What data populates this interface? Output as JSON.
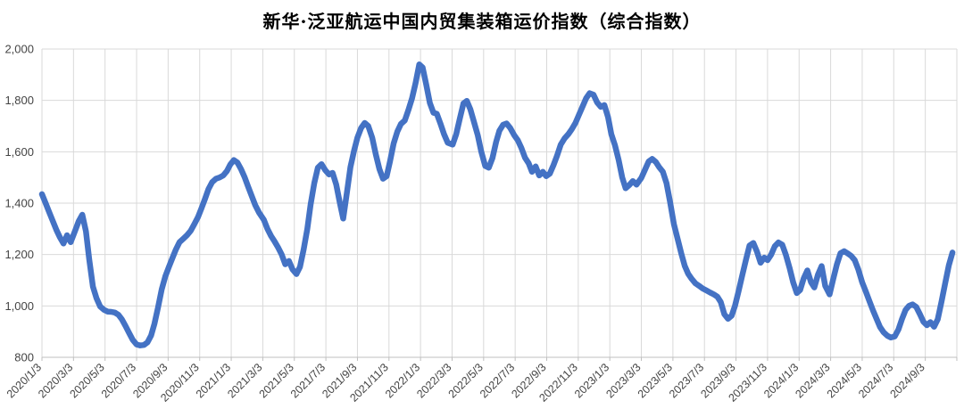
{
  "title": "新华·泛亚航运中国内贸集装箱运价指数（综合指数）",
  "colors": {
    "line": "#4472C4",
    "grid": "#D9D9D9",
    "axis": "#BFBFBF",
    "tick_text": "#444444",
    "background": "#FFFFFF"
  },
  "chart_data": {
    "type": "line",
    "title": "新华·泛亚航运中国内贸集装箱运价指数（综合指数）",
    "xlabel": "",
    "ylabel": "",
    "grid": true,
    "legend": false,
    "ylim": [
      800,
      2000
    ],
    "y_tick_step": 200,
    "y_tick_labels": [
      "800",
      "1,000",
      "1,200",
      "1,400",
      "1,600",
      "1,800",
      "2,000"
    ],
    "x_tick_label_rotation": -45,
    "x_tick_labels": [
      "2020/1/3",
      "2020/3/3",
      "2020/5/3",
      "2020/7/3",
      "2020/9/3",
      "2020/11/3",
      "2021/1/3",
      "2021/3/3",
      "2021/5/3",
      "2021/7/3",
      "2021/9/3",
      "2021/11/3",
      "2022/1/3",
      "2022/3/3",
      "2022/5/3",
      "2022/7/3",
      "2022/9/3",
      "2022/11/3",
      "2023/1/3",
      "2023/3/3",
      "2023/5/3",
      "2023/7/3",
      "2023/9/3",
      "2023/11/3",
      "2024/1/3",
      "2024/3/3",
      "2024/5/3",
      "2024/7/3",
      "2024/9/3"
    ],
    "points": [
      [
        "2020/1/3",
        1435
      ],
      [
        "2020/1/10",
        1400
      ],
      [
        "2020/1/17",
        1365
      ],
      [
        "2020/1/24",
        1330
      ],
      [
        "2020/1/31",
        1295
      ],
      [
        "2020/2/7",
        1268
      ],
      [
        "2020/2/14",
        1243
      ],
      [
        "2020/2/21",
        1275
      ],
      [
        "2020/2/28",
        1248
      ],
      [
        "2020/3/6",
        1292
      ],
      [
        "2020/3/13",
        1330
      ],
      [
        "2020/3/20",
        1355
      ],
      [
        "2020/3/27",
        1290
      ],
      [
        "2020/4/3",
        1180
      ],
      [
        "2020/4/10",
        1075
      ],
      [
        "2020/4/17",
        1030
      ],
      [
        "2020/4/24",
        998
      ],
      [
        "2020/5/1",
        985
      ],
      [
        "2020/5/8",
        978
      ],
      [
        "2020/5/15",
        977
      ],
      [
        "2020/5/22",
        974
      ],
      [
        "2020/5/29",
        965
      ],
      [
        "2020/6/5",
        948
      ],
      [
        "2020/6/12",
        922
      ],
      [
        "2020/6/19",
        895
      ],
      [
        "2020/6/26",
        868
      ],
      [
        "2020/7/3",
        850
      ],
      [
        "2020/7/10",
        846
      ],
      [
        "2020/7/17",
        848
      ],
      [
        "2020/7/24",
        858
      ],
      [
        "2020/7/31",
        885
      ],
      [
        "2020/8/7",
        930
      ],
      [
        "2020/8/14",
        995
      ],
      [
        "2020/8/21",
        1065
      ],
      [
        "2020/8/28",
        1115
      ],
      [
        "2020/9/4",
        1150
      ],
      [
        "2020/9/11",
        1185
      ],
      [
        "2020/9/18",
        1220
      ],
      [
        "2020/9/25",
        1248
      ],
      [
        "2020/10/2",
        1262
      ],
      [
        "2020/10/9",
        1275
      ],
      [
        "2020/10/16",
        1292
      ],
      [
        "2020/10/23",
        1318
      ],
      [
        "2020/10/30",
        1345
      ],
      [
        "2020/11/6",
        1378
      ],
      [
        "2020/11/13",
        1415
      ],
      [
        "2020/11/20",
        1455
      ],
      [
        "2020/11/27",
        1482
      ],
      [
        "2020/12/4",
        1495
      ],
      [
        "2020/12/11",
        1500
      ],
      [
        "2020/12/18",
        1508
      ],
      [
        "2020/12/25",
        1525
      ],
      [
        "2021/1/1",
        1550
      ],
      [
        "2021/1/8",
        1568
      ],
      [
        "2021/1/15",
        1558
      ],
      [
        "2021/1/22",
        1532
      ],
      [
        "2021/1/29",
        1500
      ],
      [
        "2021/2/5",
        1465
      ],
      [
        "2021/2/12",
        1428
      ],
      [
        "2021/2/19",
        1392
      ],
      [
        "2021/2/26",
        1364
      ],
      [
        "2021/3/5",
        1335
      ],
      [
        "2021/3/12",
        1300
      ],
      [
        "2021/3/19",
        1272
      ],
      [
        "2021/3/26",
        1250
      ],
      [
        "2021/4/2",
        1228
      ],
      [
        "2021/4/9",
        1200
      ],
      [
        "2021/4/16",
        1162
      ],
      [
        "2021/4/23",
        1175
      ],
      [
        "2021/4/30",
        1142
      ],
      [
        "2021/5/7",
        1124
      ],
      [
        "2021/5/14",
        1152
      ],
      [
        "2021/5/21",
        1220
      ],
      [
        "2021/5/28",
        1300
      ],
      [
        "2021/6/4",
        1395
      ],
      [
        "2021/6/11",
        1478
      ],
      [
        "2021/6/18",
        1538
      ],
      [
        "2021/6/25",
        1552
      ],
      [
        "2021/7/2",
        1528
      ],
      [
        "2021/7/9",
        1512
      ],
      [
        "2021/7/16",
        1518
      ],
      [
        "2021/7/23",
        1472
      ],
      [
        "2021/7/30",
        1400
      ],
      [
        "2021/8/6",
        1340
      ],
      [
        "2021/8/13",
        1440
      ],
      [
        "2021/8/20",
        1540
      ],
      [
        "2021/8/27",
        1605
      ],
      [
        "2021/9/3",
        1655
      ],
      [
        "2021/9/10",
        1692
      ],
      [
        "2021/9/17",
        1712
      ],
      [
        "2021/9/24",
        1700
      ],
      [
        "2021/10/1",
        1655
      ],
      [
        "2021/10/8",
        1590
      ],
      [
        "2021/10/15",
        1532
      ],
      [
        "2021/10/22",
        1495
      ],
      [
        "2021/10/29",
        1505
      ],
      [
        "2021/11/5",
        1562
      ],
      [
        "2021/11/12",
        1632
      ],
      [
        "2021/11/19",
        1678
      ],
      [
        "2021/11/26",
        1708
      ],
      [
        "2021/12/3",
        1722
      ],
      [
        "2021/12/10",
        1762
      ],
      [
        "2021/12/17",
        1808
      ],
      [
        "2021/12/24",
        1868
      ],
      [
        "2021/12/31",
        1940
      ],
      [
        "2022/1/7",
        1928
      ],
      [
        "2022/1/14",
        1862
      ],
      [
        "2022/1/21",
        1790
      ],
      [
        "2022/1/28",
        1752
      ],
      [
        "2022/2/4",
        1748
      ],
      [
        "2022/2/11",
        1710
      ],
      [
        "2022/2/18",
        1668
      ],
      [
        "2022/2/25",
        1635
      ],
      [
        "2022/3/4",
        1628
      ],
      [
        "2022/3/11",
        1668
      ],
      [
        "2022/3/18",
        1730
      ],
      [
        "2022/3/25",
        1788
      ],
      [
        "2022/4/1",
        1798
      ],
      [
        "2022/4/8",
        1765
      ],
      [
        "2022/4/15",
        1715
      ],
      [
        "2022/4/22",
        1665
      ],
      [
        "2022/4/29",
        1600
      ],
      [
        "2022/5/6",
        1545
      ],
      [
        "2022/5/13",
        1538
      ],
      [
        "2022/5/20",
        1575
      ],
      [
        "2022/5/27",
        1638
      ],
      [
        "2022/6/3",
        1682
      ],
      [
        "2022/6/10",
        1705
      ],
      [
        "2022/6/17",
        1710
      ],
      [
        "2022/6/24",
        1692
      ],
      [
        "2022/7/1",
        1665
      ],
      [
        "2022/7/8",
        1645
      ],
      [
        "2022/7/15",
        1615
      ],
      [
        "2022/7/22",
        1577
      ],
      [
        "2022/7/29",
        1555
      ],
      [
        "2022/8/5",
        1522
      ],
      [
        "2022/8/12",
        1543
      ],
      [
        "2022/8/19",
        1508
      ],
      [
        "2022/8/26",
        1522
      ],
      [
        "2022/9/2",
        1505
      ],
      [
        "2022/9/9",
        1515
      ],
      [
        "2022/9/16",
        1548
      ],
      [
        "2022/9/23",
        1585
      ],
      [
        "2022/9/30",
        1628
      ],
      [
        "2022/10/7",
        1652
      ],
      [
        "2022/10/14",
        1668
      ],
      [
        "2022/10/21",
        1688
      ],
      [
        "2022/10/28",
        1712
      ],
      [
        "2022/11/4",
        1742
      ],
      [
        "2022/11/11",
        1775
      ],
      [
        "2022/11/18",
        1808
      ],
      [
        "2022/11/25",
        1828
      ],
      [
        "2022/12/2",
        1822
      ],
      [
        "2022/12/9",
        1792
      ],
      [
        "2022/12/16",
        1775
      ],
      [
        "2022/12/23",
        1782
      ],
      [
        "2022/12/30",
        1735
      ],
      [
        "2023/1/6",
        1668
      ],
      [
        "2023/1/13",
        1625
      ],
      [
        "2023/1/20",
        1568
      ],
      [
        "2023/1/27",
        1500
      ],
      [
        "2023/2/3",
        1458
      ],
      [
        "2023/2/10",
        1470
      ],
      [
        "2023/2/17",
        1486
      ],
      [
        "2023/2/24",
        1472
      ],
      [
        "2023/3/3",
        1498
      ],
      [
        "2023/3/10",
        1530
      ],
      [
        "2023/3/17",
        1562
      ],
      [
        "2023/3/24",
        1572
      ],
      [
        "2023/3/31",
        1560
      ],
      [
        "2023/4/7",
        1540
      ],
      [
        "2023/4/14",
        1522
      ],
      [
        "2023/4/21",
        1478
      ],
      [
        "2023/4/28",
        1405
      ],
      [
        "2023/5/5",
        1318
      ],
      [
        "2023/5/12",
        1262
      ],
      [
        "2023/5/19",
        1205
      ],
      [
        "2023/5/26",
        1155
      ],
      [
        "2023/6/2",
        1125
      ],
      [
        "2023/6/9",
        1105
      ],
      [
        "2023/6/16",
        1088
      ],
      [
        "2023/6/23",
        1078
      ],
      [
        "2023/6/30",
        1068
      ],
      [
        "2023/7/7",
        1060
      ],
      [
        "2023/7/14",
        1052
      ],
      [
        "2023/7/21",
        1045
      ],
      [
        "2023/7/28",
        1036
      ],
      [
        "2023/8/4",
        1015
      ],
      [
        "2023/8/11",
        968
      ],
      [
        "2023/8/18",
        950
      ],
      [
        "2023/8/25",
        962
      ],
      [
        "2023/9/1",
        1000
      ],
      [
        "2023/9/8",
        1058
      ],
      [
        "2023/9/15",
        1118
      ],
      [
        "2023/9/22",
        1178
      ],
      [
        "2023/9/29",
        1235
      ],
      [
        "2023/10/6",
        1245
      ],
      [
        "2023/10/13",
        1212
      ],
      [
        "2023/10/20",
        1168
      ],
      [
        "2023/10/27",
        1188
      ],
      [
        "2023/11/3",
        1178
      ],
      [
        "2023/11/10",
        1200
      ],
      [
        "2023/11/17",
        1232
      ],
      [
        "2023/11/24",
        1247
      ],
      [
        "2023/12/1",
        1238
      ],
      [
        "2023/12/8",
        1198
      ],
      [
        "2023/12/15",
        1148
      ],
      [
        "2023/12/22",
        1092
      ],
      [
        "2023/12/29",
        1050
      ],
      [
        "2024/1/5",
        1062
      ],
      [
        "2024/1/12",
        1108
      ],
      [
        "2024/1/19",
        1138
      ],
      [
        "2024/1/26",
        1092
      ],
      [
        "2024/2/2",
        1072
      ],
      [
        "2024/2/9",
        1122
      ],
      [
        "2024/2/16",
        1155
      ],
      [
        "2024/2/23",
        1078
      ],
      [
        "2024/3/1",
        1045
      ],
      [
        "2024/3/8",
        1105
      ],
      [
        "2024/3/15",
        1162
      ],
      [
        "2024/3/22",
        1205
      ],
      [
        "2024/3/29",
        1213
      ],
      [
        "2024/4/5",
        1205
      ],
      [
        "2024/4/12",
        1195
      ],
      [
        "2024/4/19",
        1178
      ],
      [
        "2024/4/26",
        1142
      ],
      [
        "2024/5/3",
        1092
      ],
      [
        "2024/5/10",
        1056
      ],
      [
        "2024/5/17",
        1018
      ],
      [
        "2024/5/24",
        982
      ],
      [
        "2024/5/31",
        948
      ],
      [
        "2024/6/7",
        918
      ],
      [
        "2024/6/14",
        897
      ],
      [
        "2024/6/21",
        884
      ],
      [
        "2024/6/28",
        877
      ],
      [
        "2024/7/5",
        881
      ],
      [
        "2024/7/12",
        908
      ],
      [
        "2024/7/19",
        950
      ],
      [
        "2024/7/26",
        985
      ],
      [
        "2024/8/2",
        1000
      ],
      [
        "2024/8/9",
        1006
      ],
      [
        "2024/8/16",
        996
      ],
      [
        "2024/8/23",
        968
      ],
      [
        "2024/8/30",
        938
      ],
      [
        "2024/9/6",
        925
      ],
      [
        "2024/9/13",
        937
      ],
      [
        "2024/9/20",
        919
      ],
      [
        "2024/9/27",
        948
      ],
      [
        "2024/10/4",
        1018
      ],
      [
        "2024/10/11",
        1088
      ],
      [
        "2024/10/18",
        1158
      ],
      [
        "2024/10/25",
        1208
      ]
    ]
  }
}
